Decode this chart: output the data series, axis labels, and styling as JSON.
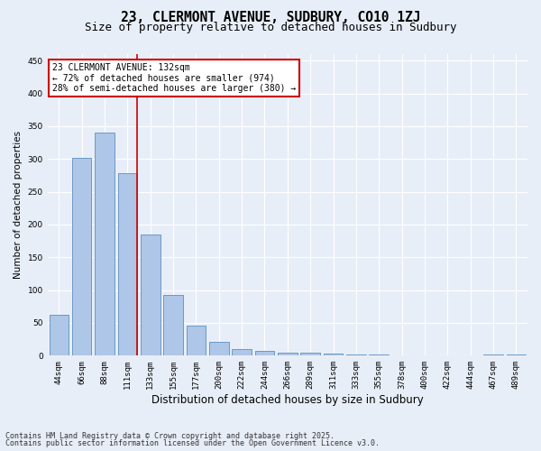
{
  "title1": "23, CLERMONT AVENUE, SUDBURY, CO10 1ZJ",
  "title2": "Size of property relative to detached houses in Sudbury",
  "xlabel": "Distribution of detached houses by size in Sudbury",
  "ylabel": "Number of detached properties",
  "bar_color": "#aec6e8",
  "bar_edge_color": "#5a8fc0",
  "background_color": "#e8eef8",
  "grid_color": "#ffffff",
  "categories": [
    "44sqm",
    "66sqm",
    "88sqm",
    "111sqm",
    "133sqm",
    "155sqm",
    "177sqm",
    "200sqm",
    "222sqm",
    "244sqm",
    "266sqm",
    "289sqm",
    "311sqm",
    "333sqm",
    "355sqm",
    "378sqm",
    "400sqm",
    "422sqm",
    "444sqm",
    "467sqm",
    "489sqm"
  ],
  "values": [
    63,
    302,
    340,
    278,
    185,
    92,
    46,
    21,
    10,
    7,
    5,
    5,
    3,
    2,
    2,
    1,
    0,
    0,
    0,
    2,
    2
  ],
  "red_line_bar_index": 3,
  "annotation_text": "23 CLERMONT AVENUE: 132sqm\n← 72% of detached houses are smaller (974)\n28% of semi-detached houses are larger (380) →",
  "annotation_box_color": "#ffffff",
  "annotation_box_edge": "#cc0000",
  "ylim": [
    0,
    460
  ],
  "yticks": [
    0,
    50,
    100,
    150,
    200,
    250,
    300,
    350,
    400,
    450
  ],
  "footer1": "Contains HM Land Registry data © Crown copyright and database right 2025.",
  "footer2": "Contains public sector information licensed under the Open Government Licence v3.0.",
  "title1_fontsize": 10.5,
  "title2_fontsize": 9,
  "xlabel_fontsize": 8.5,
  "ylabel_fontsize": 7.5,
  "tick_fontsize": 6.5,
  "annotation_fontsize": 7,
  "footer_fontsize": 6
}
